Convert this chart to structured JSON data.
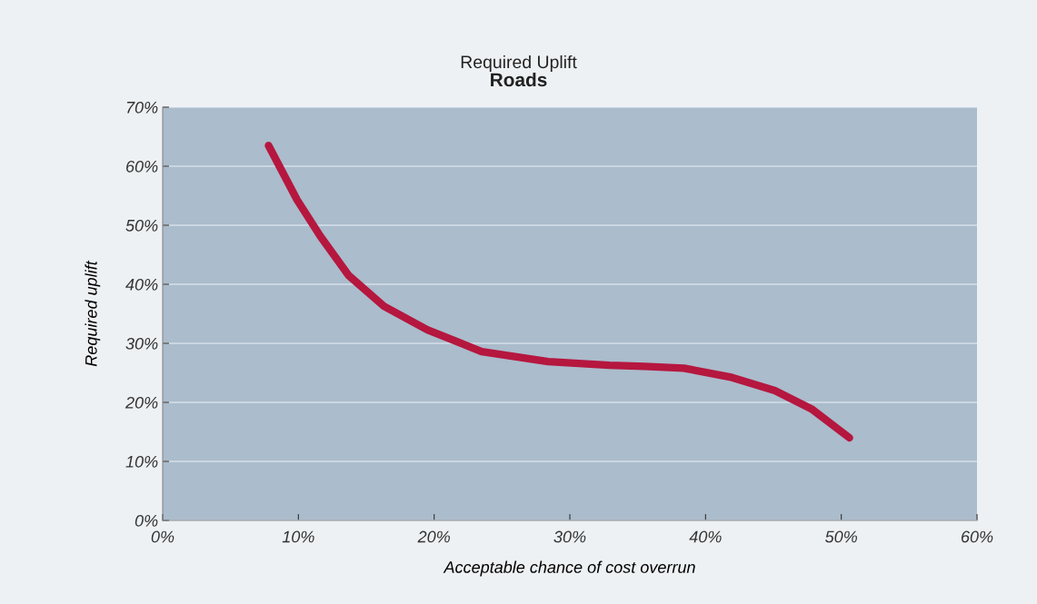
{
  "chart_data": {
    "type": "line",
    "title": "Required Uplift",
    "subtitle": "Roads",
    "xlabel": "Acceptable chance of cost overrun",
    "ylabel": "Required uplift",
    "series": [
      {
        "color": "#b5173f",
        "x": [
          7.8,
          9.9,
          11.6,
          13.7,
          16.3,
          19.5,
          23.5,
          28.4,
          32.9,
          35.5,
          38.4,
          41.8,
          45.1,
          47.8,
          50.6
        ],
        "values": [
          63.5,
          54.3,
          48.2,
          41.5,
          36.3,
          32.3,
          28.6,
          26.9,
          26.3,
          26.1,
          25.8,
          24.3,
          22,
          18.9,
          14
        ]
      }
    ],
    "xlim": [
      0,
      60
    ],
    "ylim": [
      0,
      70
    ],
    "xticks": [
      {
        "value": 0,
        "label": "0%"
      },
      {
        "value": 10,
        "label": "10%"
      },
      {
        "value": 20,
        "label": "20%"
      },
      {
        "value": 30,
        "label": "30%"
      },
      {
        "value": 40,
        "label": "40%"
      },
      {
        "value": 50,
        "label": "50%"
      },
      {
        "value": 60,
        "label": "60%"
      }
    ],
    "yticks": [
      {
        "value": 0,
        "label": "0%"
      },
      {
        "value": 10,
        "label": "10%"
      },
      {
        "value": 20,
        "label": "20%"
      },
      {
        "value": 30,
        "label": "30%"
      },
      {
        "value": 40,
        "label": "40%"
      },
      {
        "value": 50,
        "label": "50%"
      },
      {
        "value": 60,
        "label": "60%"
      },
      {
        "value": 70,
        "label": "70%"
      }
    ],
    "grid": "y",
    "marker": "none",
    "line_style": "solid"
  }
}
